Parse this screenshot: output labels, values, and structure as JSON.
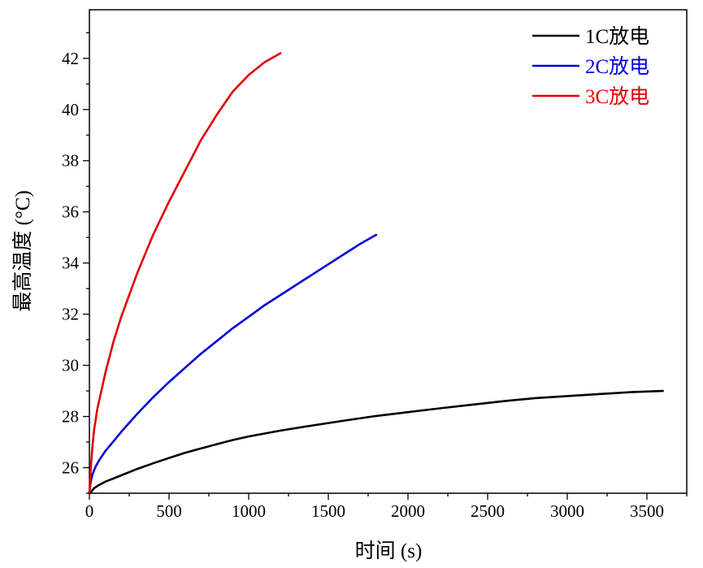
{
  "chart_data": {
    "type": "line",
    "xlabel": "时间 (s)",
    "ylabel": "最高温度 (°C)",
    "xlim": [
      0,
      3750
    ],
    "ylim": [
      25,
      43.9
    ],
    "x_ticks": [
      0,
      500,
      1000,
      1500,
      2000,
      2500,
      3000,
      3500
    ],
    "x_tick_labels": [
      "0",
      "500",
      "1000",
      "1500",
      "2000",
      "2500",
      "3000",
      "3500"
    ],
    "y_ticks": [
      26,
      28,
      30,
      32,
      34,
      36,
      38,
      40,
      42
    ],
    "y_tick_labels": [
      "26",
      "28",
      "30",
      "32",
      "34",
      "36",
      "38",
      "40",
      "42"
    ],
    "grid": false,
    "legend_position": "top-right",
    "series": [
      {
        "name": "1C放电",
        "color": "#000000",
        "points": [
          [
            0,
            25.0
          ],
          [
            10,
            25.05
          ],
          [
            30,
            25.2
          ],
          [
            60,
            25.32
          ],
          [
            100,
            25.45
          ],
          [
            200,
            25.7
          ],
          [
            300,
            25.95
          ],
          [
            400,
            26.17
          ],
          [
            500,
            26.38
          ],
          [
            600,
            26.58
          ],
          [
            700,
            26.75
          ],
          [
            800,
            26.92
          ],
          [
            900,
            27.08
          ],
          [
            1000,
            27.22
          ],
          [
            1200,
            27.45
          ],
          [
            1400,
            27.65
          ],
          [
            1600,
            27.84
          ],
          [
            1800,
            28.02
          ],
          [
            2000,
            28.17
          ],
          [
            2200,
            28.32
          ],
          [
            2400,
            28.46
          ],
          [
            2600,
            28.6
          ],
          [
            2800,
            28.72
          ],
          [
            3000,
            28.8
          ],
          [
            3200,
            28.88
          ],
          [
            3400,
            28.95
          ],
          [
            3600,
            29.0
          ]
        ]
      },
      {
        "name": "2C放电",
        "color": "#0000d8",
        "points": [
          [
            0,
            25.0
          ],
          [
            5,
            25.3
          ],
          [
            10,
            25.5
          ],
          [
            20,
            25.75
          ],
          [
            40,
            26.05
          ],
          [
            60,
            26.28
          ],
          [
            100,
            26.65
          ],
          [
            150,
            27.02
          ],
          [
            200,
            27.4
          ],
          [
            300,
            28.1
          ],
          [
            400,
            28.75
          ],
          [
            500,
            29.35
          ],
          [
            600,
            29.9
          ],
          [
            700,
            30.45
          ],
          [
            800,
            30.95
          ],
          [
            900,
            31.45
          ],
          [
            1000,
            31.9
          ],
          [
            1100,
            32.35
          ],
          [
            1200,
            32.75
          ],
          [
            1300,
            33.15
          ],
          [
            1400,
            33.55
          ],
          [
            1500,
            33.95
          ],
          [
            1600,
            34.35
          ],
          [
            1700,
            34.75
          ],
          [
            1800,
            35.1
          ]
        ]
      },
      {
        "name": "3C放电",
        "color": "#e00000",
        "points": [
          [
            0,
            25.0
          ],
          [
            5,
            25.6
          ],
          [
            10,
            26.1
          ],
          [
            20,
            26.9
          ],
          [
            30,
            27.5
          ],
          [
            50,
            28.3
          ],
          [
            75,
            29.0
          ],
          [
            100,
            29.7
          ],
          [
            150,
            30.9
          ],
          [
            200,
            31.9
          ],
          [
            300,
            33.6
          ],
          [
            400,
            35.1
          ],
          [
            500,
            36.4
          ],
          [
            600,
            37.6
          ],
          [
            700,
            38.8
          ],
          [
            800,
            39.8
          ],
          [
            900,
            40.7
          ],
          [
            1000,
            41.35
          ],
          [
            1100,
            41.85
          ],
          [
            1200,
            42.2
          ]
        ]
      }
    ]
  }
}
